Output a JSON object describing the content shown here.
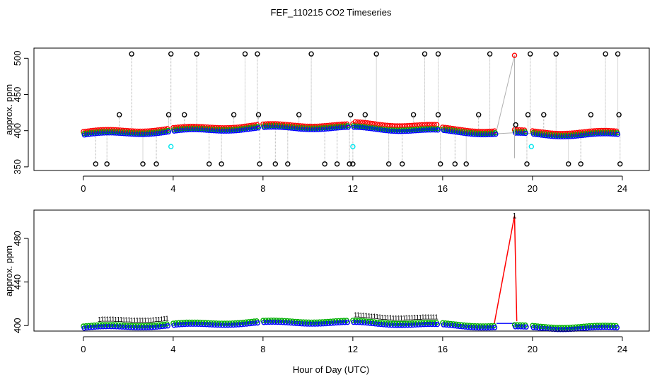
{
  "title": "FEF_110215  CO2 Timeseries",
  "xlabel": "Hour of Day (UTC)",
  "colors": {
    "black": "#000000",
    "red": "#ff0000",
    "green": "#00b000",
    "blue": "#0000ff",
    "cyan": "#00e5ee",
    "gray": "#b0b0b0"
  },
  "chart_data": [
    {
      "type": "scatter",
      "panel": "top",
      "ylabel": "approx. ppm",
      "xlim": [
        -2.2,
        25.2
      ],
      "ylim": [
        345,
        514
      ],
      "xticks": [
        0,
        4,
        8,
        12,
        16,
        20,
        24
      ],
      "yticks": [
        350,
        400,
        450,
        500
      ],
      "baseline_segments": [
        [
          0,
          3.8
        ],
        [
          4.0,
          7.8
        ],
        [
          8.0,
          11.8
        ],
        [
          12.0,
          15.8
        ],
        [
          16.0,
          18.4
        ],
        [
          19.2,
          19.7
        ],
        [
          20.0,
          23.8
        ]
      ],
      "high_spikes_x": [
        2.15,
        3.9,
        5.05,
        7.2,
        7.75,
        10.15,
        13.05,
        15.2,
        15.8,
        18.1,
        19.9,
        21.05,
        23.25,
        23.8
      ],
      "mid_spikes_x": [
        1.6,
        3.8,
        4.5,
        6.7,
        7.8,
        9.6,
        11.9,
        12.55,
        14.7,
        15.8,
        17.6,
        19.8,
        20.5,
        22.6,
        23.85
      ],
      "low_spikes_x": [
        0.55,
        1.05,
        2.65,
        3.25,
        5.6,
        6.15,
        7.85,
        8.55,
        9.1,
        10.75,
        11.3,
        11.85,
        12.0,
        13.6,
        14.2,
        15.9,
        16.55,
        17.05,
        19.75,
        21.6,
        22.15,
        23.9
      ],
      "cyan_points": [
        {
          "x": 3.9,
          "y": 378
        },
        {
          "x": 12.0,
          "y": 378
        },
        {
          "x": 19.95,
          "y": 378
        }
      ],
      "red_outlier": {
        "x": 19.2,
        "y": 504
      }
    },
    {
      "type": "scatter",
      "panel": "bottom",
      "ylabel": "approx. ppm",
      "xlim": [
        -2.2,
        25.2
      ],
      "ylim": [
        395,
        506
      ],
      "xticks": [
        0,
        4,
        8,
        12,
        16,
        20,
        24
      ],
      "yticks": [
        400,
        440,
        480
      ],
      "baseline_segments": [
        [
          0,
          3.8
        ],
        [
          4.0,
          4.5
        ],
        [
          4.6,
          7.8
        ],
        [
          8.0,
          11.8
        ],
        [
          12.0,
          15.8
        ],
        [
          16.0,
          18.4
        ],
        [
          19.2,
          19.7
        ],
        [
          20.0,
          23.8
        ]
      ],
      "peak": {
        "x": 19.2,
        "y": 501
      },
      "peak_label": "1"
    }
  ]
}
